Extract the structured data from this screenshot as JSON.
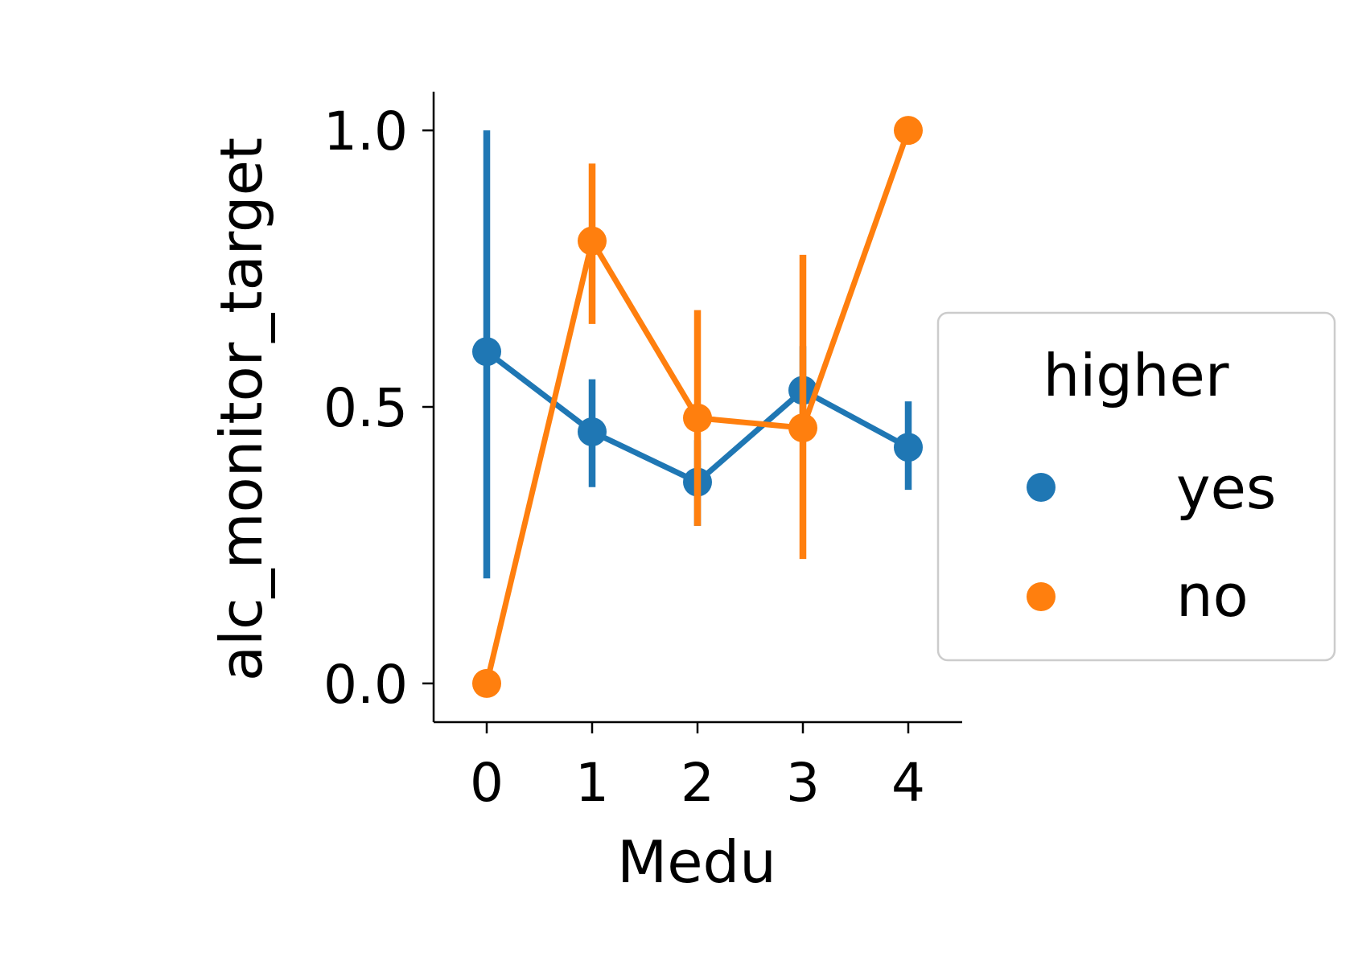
{
  "chart_data": {
    "type": "line",
    "xlabel": "Medu",
    "ylabel": "alc_monitor_target",
    "categories": [
      "0",
      "1",
      "2",
      "3",
      "4"
    ],
    "x_tick_labels": [
      "0",
      "1",
      "2",
      "3",
      "4"
    ],
    "y_ticks": [
      0.0,
      0.5,
      1.0
    ],
    "y_tick_labels": [
      "0.0",
      "0.5",
      "1.0"
    ],
    "ylim": [
      -0.07,
      1.07
    ],
    "grid": false,
    "legend": {
      "title": "higher",
      "placement": "right, outside plot",
      "entries": [
        "yes",
        "no"
      ]
    },
    "series": [
      {
        "name": "yes",
        "color": "#1f77b4",
        "values": [
          0.6,
          0.455,
          0.364,
          0.53,
          0.427
        ],
        "ci_low": [
          0.19,
          0.355,
          0.285,
          0.443,
          0.35
        ],
        "ci_high": [
          1.0,
          0.55,
          0.44,
          0.61,
          0.51
        ]
      },
      {
        "name": "no",
        "color": "#ff7f0e",
        "values": [
          0.0,
          0.8,
          0.48,
          0.462,
          1.0
        ],
        "ci_low": [
          null,
          0.65,
          0.285,
          0.225,
          null
        ],
        "ci_high": [
          null,
          0.94,
          0.675,
          0.775,
          null
        ]
      }
    ]
  }
}
